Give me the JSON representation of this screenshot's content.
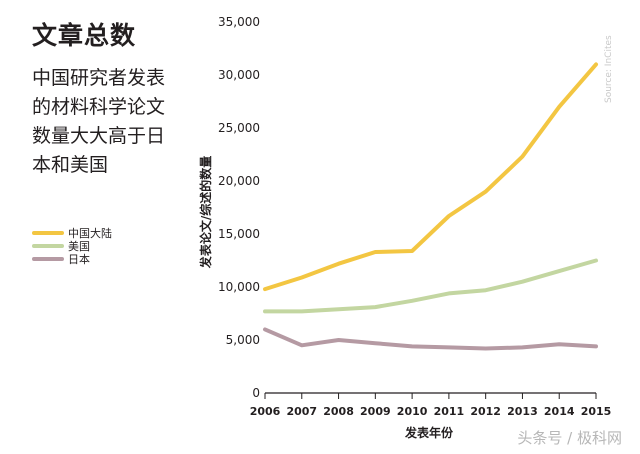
{
  "title": "文章总数",
  "subtitle": "中国研究者发表的材料科学论文数量大大高于日本和美国",
  "source_note": "Source: InCites",
  "watermark": "头条号 / 极科网",
  "chart_data": {
    "type": "line",
    "x": [
      2006,
      2007,
      2008,
      2009,
      2010,
      2011,
      2012,
      2013,
      2014,
      2015
    ],
    "series": [
      {
        "name": "中国大陆",
        "color": "#f3c642",
        "values": [
          9800,
          10900,
          12200,
          13300,
          13400,
          16700,
          19000,
          22300,
          27000,
          31000
        ]
      },
      {
        "name": "美国",
        "color": "#c3d6a1",
        "values": [
          7700,
          7700,
          7900,
          8100,
          8700,
          9400,
          9700,
          10500,
          11500,
          12500
        ]
      },
      {
        "name": "日本",
        "color": "#b59aa3",
        "values": [
          6000,
          4500,
          5000,
          4700,
          4400,
          4300,
          4200,
          4300,
          4600,
          4400
        ]
      }
    ],
    "xlabel": "发表年份",
    "ylabel": "发表论文/综述的数量",
    "ylim": [
      0,
      35000
    ],
    "yticks": [
      0,
      5000,
      10000,
      15000,
      20000,
      25000,
      30000,
      35000
    ],
    "ytick_labels": [
      "0",
      "5,000",
      "10,000",
      "15,000",
      "20,000",
      "25,000",
      "30,000",
      "35,000"
    ],
    "legend_position": "left",
    "grid": false
  }
}
